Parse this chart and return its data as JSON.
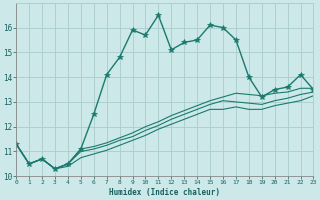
{
  "title": "",
  "xlabel": "Humidex (Indice chaleur)",
  "ylabel": "",
  "bg_color": "#cce8e8",
  "grid_color": "#aacccc",
  "line_color": "#1a7a6e",
  "xlim": [
    0,
    23
  ],
  "ylim": [
    10,
    17
  ],
  "yticks": [
    10,
    11,
    12,
    13,
    14,
    15,
    16
  ],
  "xticks": [
    0,
    1,
    2,
    3,
    4,
    5,
    6,
    7,
    8,
    9,
    10,
    11,
    12,
    13,
    14,
    15,
    16,
    17,
    18,
    19,
    20,
    21,
    22,
    23
  ],
  "series": [
    [
      11.3,
      10.5,
      10.7,
      10.3,
      10.5,
      11.1,
      12.5,
      14.1,
      14.8,
      15.9,
      15.7,
      16.5,
      15.1,
      15.4,
      15.5,
      16.1,
      16.0,
      15.5,
      14.0,
      13.2,
      13.5,
      13.6,
      14.1,
      13.5
    ],
    [
      11.3,
      10.5,
      10.7,
      10.3,
      10.5,
      11.1,
      11.2,
      11.35,
      11.55,
      11.75,
      12.0,
      12.2,
      12.45,
      12.65,
      12.85,
      13.05,
      13.2,
      13.35,
      13.3,
      13.25,
      13.35,
      13.4,
      13.55,
      13.55
    ],
    [
      11.3,
      10.5,
      10.7,
      10.3,
      10.5,
      11.0,
      11.1,
      11.25,
      11.45,
      11.6,
      11.85,
      12.05,
      12.3,
      12.5,
      12.7,
      12.9,
      13.05,
      13.0,
      12.95,
      12.9,
      13.05,
      13.15,
      13.3,
      13.4
    ],
    [
      11.3,
      10.5,
      10.7,
      10.3,
      10.4,
      10.75,
      10.9,
      11.05,
      11.25,
      11.45,
      11.65,
      11.9,
      12.1,
      12.3,
      12.5,
      12.7,
      12.7,
      12.8,
      12.7,
      12.7,
      12.85,
      12.95,
      13.05,
      13.25
    ]
  ]
}
